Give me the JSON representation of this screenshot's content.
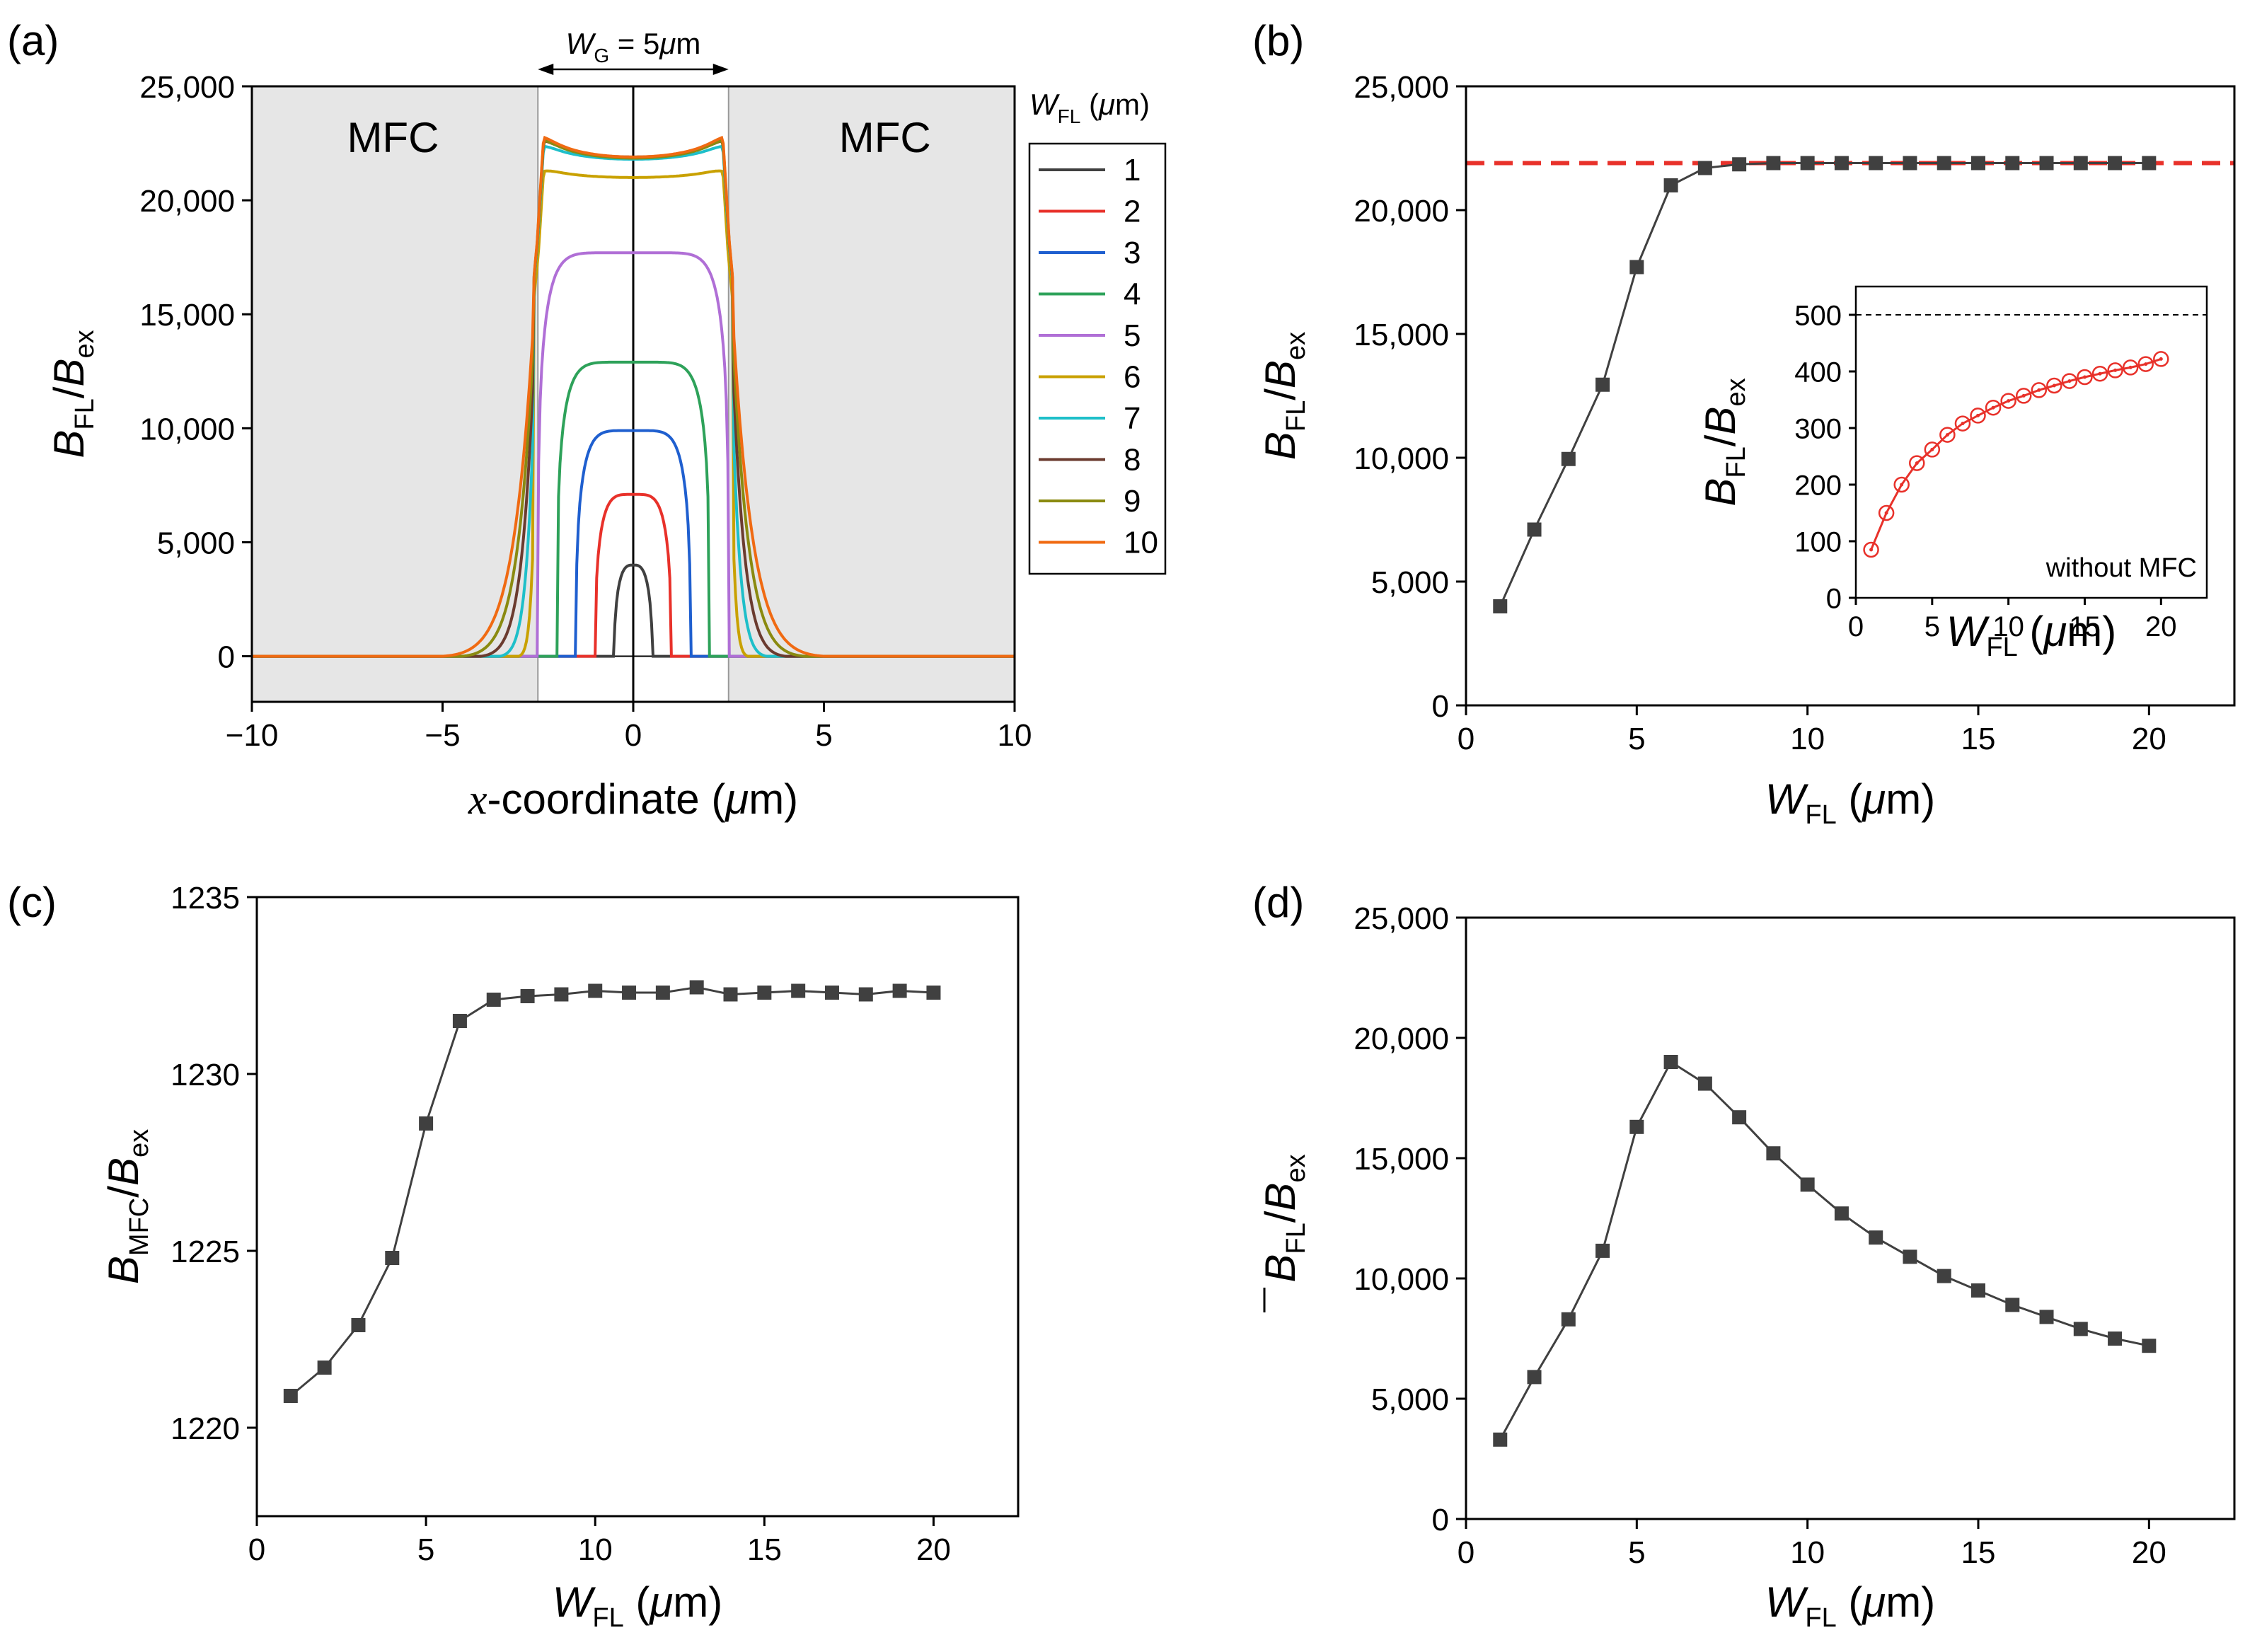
{
  "chart_data": [
    {
      "panel": "(a)",
      "type": "line",
      "xlabel": "x-coordinate (μm)",
      "ylabel": "B_FL/B_ex",
      "xlim": [
        -10,
        10
      ],
      "ylim": [
        -2000,
        25000
      ],
      "xticks": [
        "−10",
        "−5",
        "0",
        "5",
        "10"
      ],
      "yticks": [
        "0",
        "5,000",
        "10,000",
        "15,000",
        "20,000",
        "25,000"
      ],
      "gap_label": "W_G = 5μm",
      "region_labels": [
        "MFC",
        "MFC"
      ],
      "legend_title": "W_FL (μm)",
      "series": [
        {
          "name": "1",
          "color": "#404040",
          "half_width": 0.5,
          "peak": 4000,
          "dip": 0
        },
        {
          "name": "2",
          "color": "#e8312a",
          "half_width": 1.0,
          "peak": 7100,
          "dip": 0
        },
        {
          "name": "3",
          "color": "#1f5fcf",
          "half_width": 1.5,
          "peak": 9900,
          "dip": 0
        },
        {
          "name": "4",
          "color": "#2ea25a",
          "half_width": 2.0,
          "peak": 12900,
          "dip": 0
        },
        {
          "name": "5",
          "color": "#b06fd6",
          "half_width": 2.5,
          "peak": 17700,
          "dip": 0
        },
        {
          "name": "6",
          "color": "#c9a100",
          "half_width": 3.0,
          "peak": 21300,
          "dip": 300
        },
        {
          "name": "7",
          "color": "#1ebfc9",
          "half_width": 3.5,
          "peak": 22300,
          "dip": 500
        },
        {
          "name": "8",
          "color": "#6b3b2f",
          "half_width": 4.0,
          "peak": 22500,
          "dip": 600
        },
        {
          "name": "9",
          "color": "#8a8a10",
          "half_width": 4.5,
          "peak": 22500,
          "dip": 650
        },
        {
          "name": "10",
          "color": "#f06a12",
          "half_width": 5.0,
          "peak": 22600,
          "dip": 700
        }
      ]
    },
    {
      "panel": "(b)",
      "type": "line",
      "xlabel": "W_FL (μm)",
      "ylabel": "B_FL/B_ex",
      "xlim": [
        0,
        22.5
      ],
      "ylim": [
        0,
        25000
      ],
      "xticks": [
        "0",
        "5",
        "10",
        "15",
        "20"
      ],
      "yticks": [
        "0",
        "5,000",
        "10,000",
        "15,000",
        "20,000",
        "25,000"
      ],
      "reference_line": 21900,
      "x": [
        1,
        2,
        3,
        4,
        5,
        6,
        7,
        8,
        9,
        10,
        11,
        12,
        13,
        14,
        15,
        16,
        17,
        18,
        19,
        20
      ],
      "values": [
        4000,
        7100,
        9950,
        12950,
        17700,
        21000,
        21700,
        21850,
        21900,
        21900,
        21900,
        21900,
        21900,
        21900,
        21900,
        21900,
        21900,
        21900,
        21900,
        21900
      ],
      "inset": {
        "xlabel": "W_FL (μm)",
        "ylabel": "B_FL/B_ex",
        "annotation": "without MFC",
        "xlim": [
          0,
          23
        ],
        "ylim": [
          0,
          550
        ],
        "xticks": [
          "0",
          "5",
          "10",
          "15",
          "20"
        ],
        "yticks": [
          "0",
          "100",
          "200",
          "300",
          "400",
          "500"
        ],
        "reference_line": 500,
        "x": [
          1,
          2,
          3,
          4,
          5,
          6,
          7,
          8,
          9,
          10,
          11,
          12,
          13,
          14,
          15,
          16,
          17,
          18,
          19,
          20
        ],
        "values": [
          85,
          150,
          200,
          238,
          262,
          288,
          308,
          322,
          336,
          348,
          357,
          367,
          375,
          383,
          390,
          396,
          402,
          407,
          413,
          422
        ]
      }
    },
    {
      "panel": "(c)",
      "type": "line",
      "xlabel": "W_FL (μm)",
      "ylabel": "B_MFC/B_ex",
      "xlim": [
        0,
        22.5
      ],
      "ylim": [
        1217.5,
        1235
      ],
      "xticks": [
        "0",
        "5",
        "10",
        "15",
        "20"
      ],
      "yticks": [
        "1220",
        "1225",
        "1230",
        "1235"
      ],
      "x": [
        1,
        2,
        3,
        4,
        5,
        6,
        7,
        8,
        9,
        10,
        11,
        12,
        13,
        14,
        15,
        16,
        17,
        18,
        19,
        20
      ],
      "values": [
        1220.9,
        1221.7,
        1222.9,
        1224.8,
        1228.6,
        1231.5,
        1232.1,
        1232.2,
        1232.25,
        1232.35,
        1232.3,
        1232.3,
        1232.45,
        1232.25,
        1232.3,
        1232.35,
        1232.3,
        1232.25,
        1232.35,
        1232.3
      ]
    },
    {
      "panel": "(d)",
      "type": "line",
      "xlabel": "W_FL (μm)",
      "ylabel": "B̄_FL/B_ex",
      "xlim": [
        0,
        22.5
      ],
      "ylim": [
        0,
        25000
      ],
      "xticks": [
        "0",
        "5",
        "10",
        "15",
        "20"
      ],
      "yticks": [
        "0",
        "5,000",
        "10,000",
        "15,000",
        "20,000",
        "25,000"
      ],
      "x": [
        1,
        2,
        3,
        4,
        5,
        6,
        7,
        8,
        9,
        10,
        11,
        12,
        13,
        14,
        15,
        16,
        17,
        18,
        19,
        20
      ],
      "values": [
        3300,
        5900,
        8300,
        11150,
        16300,
        19000,
        18100,
        16700,
        15200,
        13900,
        12700,
        11700,
        10900,
        10100,
        9500,
        8900,
        8400,
        7900,
        7500,
        7200
      ]
    }
  ]
}
